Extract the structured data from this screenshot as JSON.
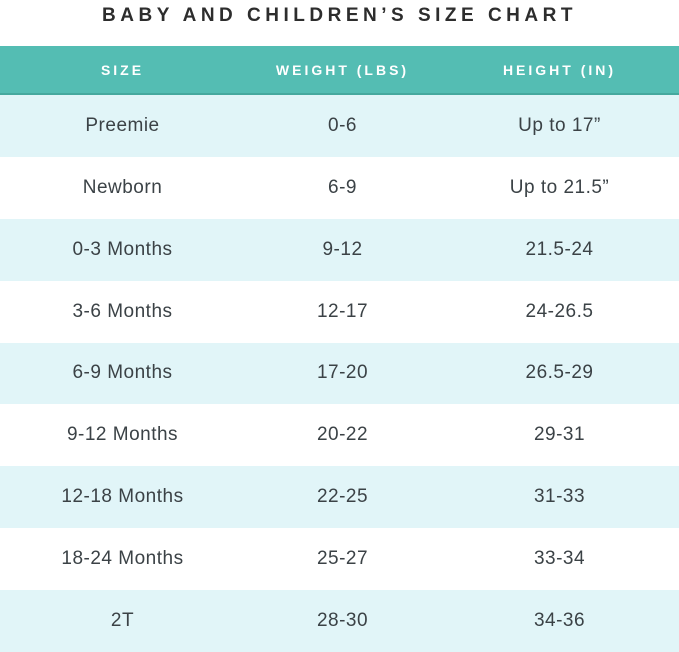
{
  "chart_data": {
    "type": "table",
    "title": "BABY AND CHILDREN’S SIZE CHART",
    "columns": [
      "SIZE",
      "WEIGHT (LBS)",
      "HEIGHT (IN)"
    ],
    "rows": [
      {
        "size": "Preemie",
        "weight": "0-6",
        "height": "Up to 17”"
      },
      {
        "size": "Newborn",
        "weight": "6-9",
        "height": "Up to 21.5”"
      },
      {
        "size": "0-3 Months",
        "weight": "9-12",
        "height": "21.5-24"
      },
      {
        "size": "3-6 Months",
        "weight": "12-17",
        "height": "24-26.5"
      },
      {
        "size": "6-9 Months",
        "weight": "17-20",
        "height": "26.5-29"
      },
      {
        "size": "9-12 Months",
        "weight": "20-22",
        "height": "29-31"
      },
      {
        "size": "12-18 Months",
        "weight": "22-25",
        "height": "31-33"
      },
      {
        "size": "18-24 Months",
        "weight": "25-27",
        "height": "33-34"
      },
      {
        "size": "2T",
        "weight": "28-30",
        "height": "34-36"
      }
    ],
    "layout": {
      "legend": "none",
      "grid": "off",
      "row_striping": "odd rows tinted"
    }
  },
  "colors": {
    "header_bg": "#54bdb3",
    "header_border": "#46a89e",
    "header_text": "#ffffff",
    "row_alt_bg": "#e1f5f8",
    "row_bg": "#ffffff",
    "title_text": "#2d2d2d",
    "cell_text": "#3b4246"
  }
}
